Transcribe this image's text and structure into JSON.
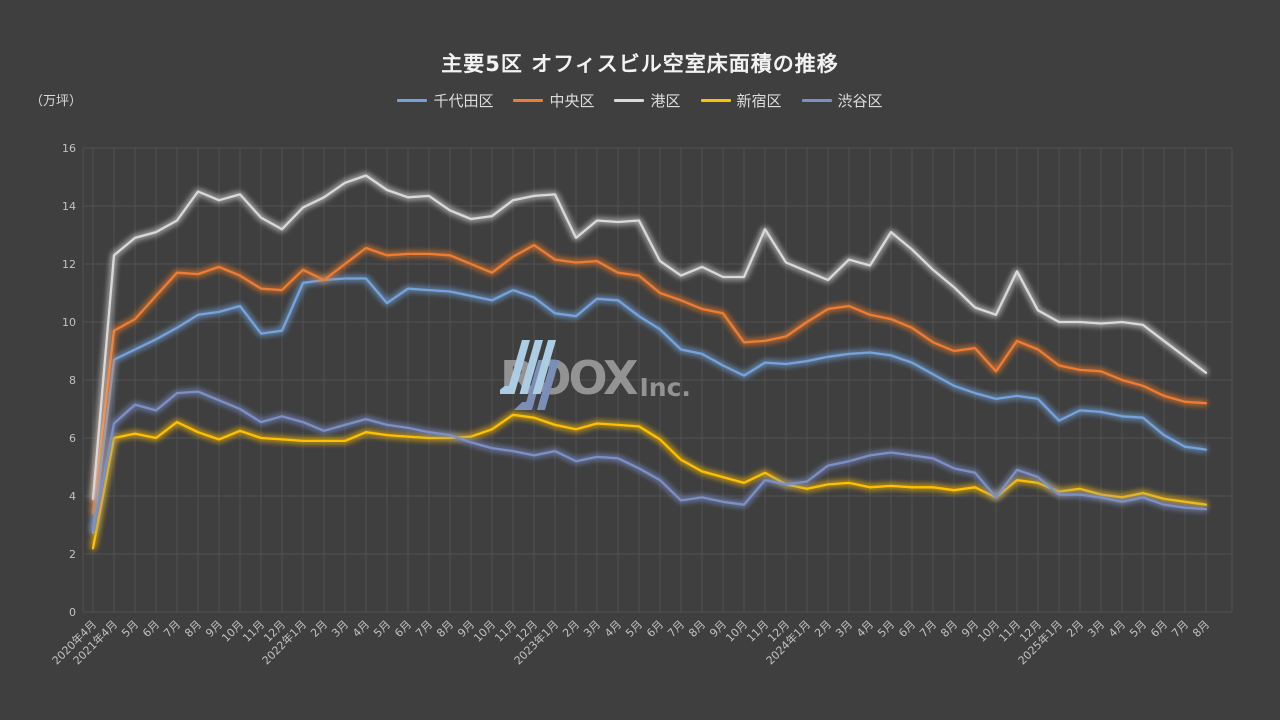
{
  "page": {
    "background": "#3F3F3F",
    "grid_color": "#525252",
    "tick_color": "#C2C2C2"
  },
  "title": "主要5区 オフィスビル空室床面積の推移",
  "axis_unit_label": "（万坪）",
  "watermark": {
    "logo": "roox-chevron-logo",
    "text_main": "ROOX",
    "text_suffix": "Inc."
  },
  "chart_data": {
    "type": "line",
    "title": "主要5区 オフィスビル空室床面積の推移",
    "ylabel": "（万坪）",
    "ylim": [
      0,
      16
    ],
    "ytick_step": 2,
    "grid": true,
    "legend_position": "top",
    "categories": [
      "2020年4月",
      "2021年4月",
      "5月",
      "6月",
      "7月",
      "8月",
      "9月",
      "10月",
      "11月",
      "12月",
      "2022年1月",
      "2月",
      "3月",
      "4月",
      "5月",
      "6月",
      "7月",
      "8月",
      "9月",
      "10月",
      "11月",
      "12月",
      "2023年1月",
      "2月",
      "3月",
      "4月",
      "5月",
      "6月",
      "7月",
      "8月",
      "9月",
      "10月",
      "11月",
      "12月",
      "2024年1月",
      "2月",
      "3月",
      "4月",
      "5月",
      "6月",
      "7月",
      "8月",
      "9月",
      "10月",
      "11月",
      "12月",
      "2025年1月",
      "2月",
      "3月",
      "4月",
      "5月",
      "6月",
      "7月",
      "8月"
    ],
    "series": [
      {
        "name": "千代田区",
        "color": "#74A3DC",
        "values": [
          2.75,
          8.7,
          9.05,
          9.4,
          9.8,
          10.25,
          10.35,
          10.55,
          9.6,
          9.7,
          11.35,
          11.45,
          11.5,
          11.5,
          10.65,
          11.15,
          11.1,
          11.05,
          10.9,
          10.75,
          11.1,
          10.85,
          10.3,
          10.2,
          10.8,
          10.75,
          10.2,
          9.75,
          9.05,
          8.9,
          8.5,
          8.15,
          8.6,
          8.55,
          8.65,
          8.8,
          8.9,
          8.95,
          8.85,
          8.6,
          8.2,
          7.8,
          7.55,
          7.35,
          7.45,
          7.35,
          6.6,
          6.95,
          6.9,
          6.75,
          6.7,
          6.1,
          5.7,
          5.6
        ]
      },
      {
        "name": "中央区",
        "color": "#ED7D31",
        "values": [
          3.4,
          9.7,
          10.1,
          10.9,
          11.7,
          11.65,
          11.9,
          11.6,
          11.15,
          11.1,
          11.8,
          11.45,
          12.0,
          12.55,
          12.3,
          12.35,
          12.35,
          12.3,
          12.0,
          11.7,
          12.25,
          12.65,
          12.15,
          12.05,
          12.1,
          11.7,
          11.6,
          11.0,
          10.75,
          10.45,
          10.3,
          9.3,
          9.35,
          9.5,
          10.0,
          10.45,
          10.55,
          10.25,
          10.1,
          9.8,
          9.3,
          9.0,
          9.1,
          8.3,
          9.35,
          9.05,
          8.5,
          8.35,
          8.3,
          8.0,
          7.8,
          7.45,
          7.25,
          7.2
        ]
      },
      {
        "name": "港区",
        "color": "#D9D9D9",
        "values": [
          3.9,
          12.3,
          12.9,
          13.1,
          13.5,
          14.5,
          14.2,
          14.4,
          13.6,
          13.2,
          13.95,
          14.3,
          14.8,
          15.05,
          14.55,
          14.3,
          14.35,
          13.85,
          13.55,
          13.65,
          14.2,
          14.35,
          14.4,
          12.9,
          13.5,
          13.45,
          13.5,
          12.1,
          11.6,
          11.9,
          11.55,
          11.55,
          13.2,
          12.05,
          11.75,
          11.45,
          12.15,
          11.95,
          13.1,
          12.5,
          11.8,
          11.2,
          10.5,
          10.25,
          11.75,
          10.4,
          10.0,
          10.0,
          9.95,
          10.0,
          9.9,
          9.35,
          8.8,
          8.25
        ]
      },
      {
        "name": "新宿区",
        "color": "#FFC000",
        "values": [
          2.2,
          6.0,
          6.15,
          6.0,
          6.55,
          6.2,
          5.95,
          6.25,
          6.0,
          5.95,
          5.9,
          5.9,
          5.9,
          6.2,
          6.1,
          6.05,
          6.0,
          6.0,
          6.05,
          6.3,
          6.8,
          6.7,
          6.45,
          6.3,
          6.5,
          6.45,
          6.4,
          5.95,
          5.25,
          4.85,
          4.65,
          4.45,
          4.8,
          4.4,
          4.25,
          4.4,
          4.45,
          4.3,
          4.35,
          4.3,
          4.3,
          4.2,
          4.3,
          3.95,
          4.55,
          4.45,
          4.15,
          4.25,
          4.05,
          3.95,
          4.1,
          3.9,
          3.8,
          3.7
        ]
      },
      {
        "name": "渋谷区",
        "color": "#7C8FC7",
        "values": [
          2.8,
          6.5,
          7.15,
          6.95,
          7.55,
          7.6,
          7.3,
          7.0,
          6.55,
          6.75,
          6.55,
          6.25,
          6.45,
          6.65,
          6.45,
          6.35,
          6.2,
          6.1,
          5.85,
          5.65,
          5.55,
          5.4,
          5.55,
          5.2,
          5.35,
          5.3,
          4.95,
          4.55,
          3.85,
          3.95,
          3.8,
          3.7,
          4.55,
          4.4,
          4.5,
          5.05,
          5.2,
          5.4,
          5.5,
          5.4,
          5.3,
          4.95,
          4.8,
          3.95,
          4.9,
          4.65,
          4.05,
          4.05,
          3.95,
          3.8,
          3.95,
          3.7,
          3.6,
          3.55
        ]
      }
    ]
  }
}
